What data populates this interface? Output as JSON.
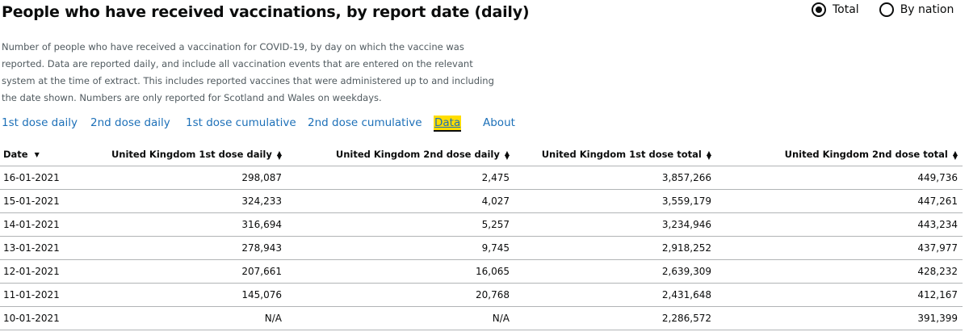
{
  "header": {
    "title": "People who have received vaccinations, by report date (daily)"
  },
  "view_toggle": {
    "options": [
      {
        "label": "Total",
        "selected": true
      },
      {
        "label": "By nation",
        "selected": false
      }
    ]
  },
  "description": "Number of people who have received a vaccination for COVID-19, by day on which the vaccine was reported. Data are reported daily, and include all vaccination events that are entered on the relevant system at the time of extract. This includes reported vaccines that were administered up to and including the date shown. Numbers are only reported for Scotland and Wales on weekdays.",
  "tabs": [
    {
      "label": "1st dose daily",
      "active": false
    },
    {
      "label": "2nd dose daily",
      "active": false
    },
    {
      "label": "1st dose cumulative",
      "active": false
    },
    {
      "label": "2nd dose cumulative",
      "active": false
    },
    {
      "label": "Data",
      "active": true
    },
    {
      "label": "About",
      "active": false
    }
  ],
  "table": {
    "columns": [
      {
        "label": "Date",
        "sort": "descending"
      },
      {
        "label": "United Kingdom 1st dose daily",
        "sort": "sortable"
      },
      {
        "label": "United Kingdom 2nd dose daily",
        "sort": "sortable"
      },
      {
        "label": "United Kingdom 1st dose total",
        "sort": "sortable"
      },
      {
        "label": "United Kingdom 2nd dose total",
        "sort": "sortable"
      }
    ],
    "rows": [
      [
        "16-01-2021",
        "298,087",
        "2,475",
        "3,857,266",
        "449,736"
      ],
      [
        "15-01-2021",
        "324,233",
        "4,027",
        "3,559,179",
        "447,261"
      ],
      [
        "14-01-2021",
        "316,694",
        "5,257",
        "3,234,946",
        "443,234"
      ],
      [
        "13-01-2021",
        "278,943",
        "9,745",
        "2,918,252",
        "437,977"
      ],
      [
        "12-01-2021",
        "207,661",
        "16,065",
        "2,639,309",
        "428,232"
      ],
      [
        "11-01-2021",
        "145,076",
        "20,768",
        "2,431,648",
        "412,167"
      ],
      [
        "10-01-2021",
        "N/A",
        "N/A",
        "2,286,572",
        "391,399"
      ]
    ]
  }
}
